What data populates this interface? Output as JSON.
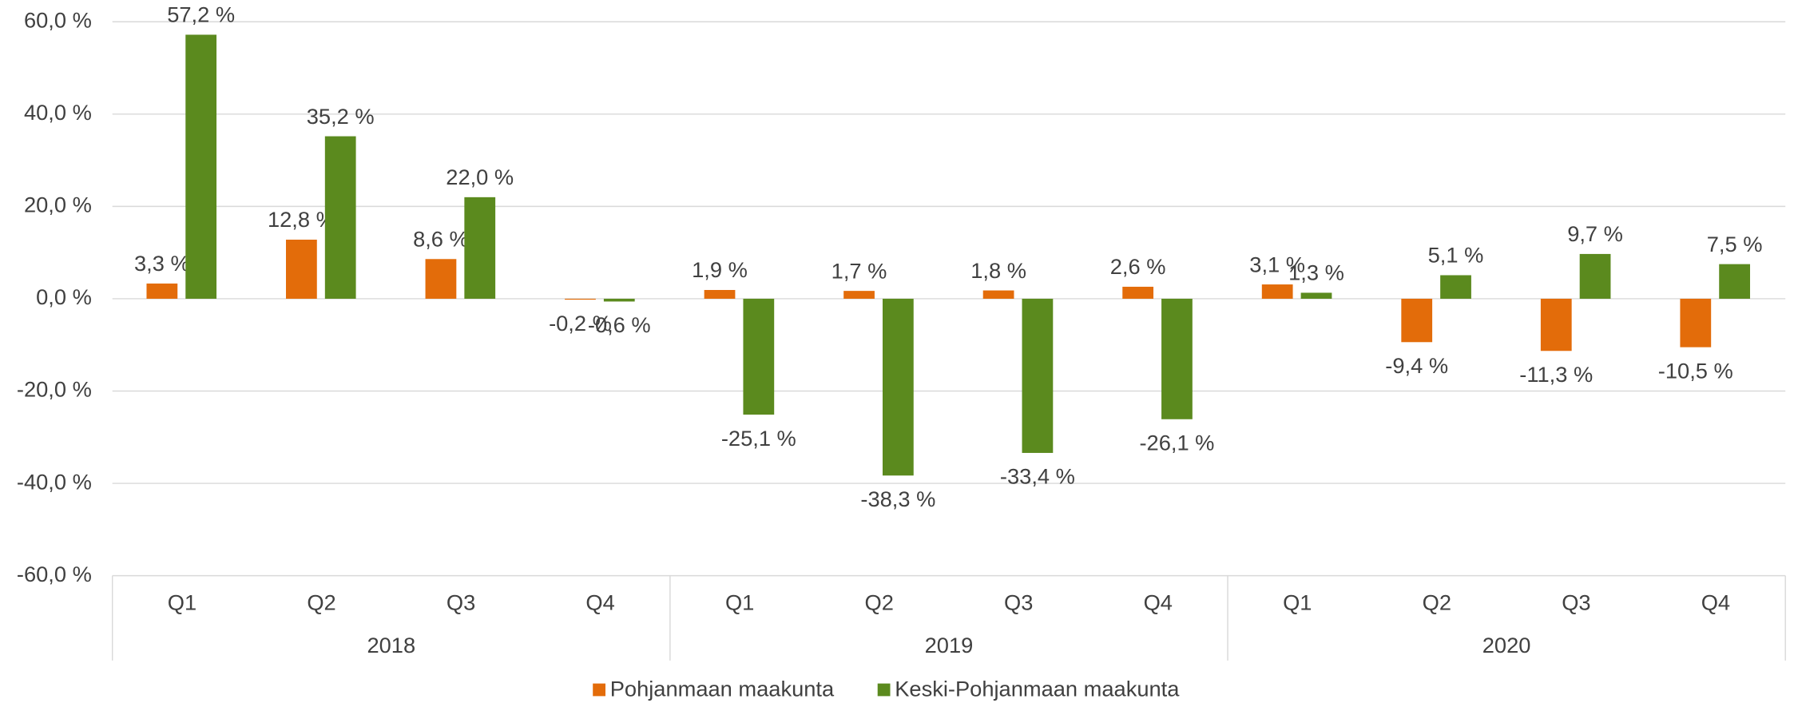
{
  "chart_data": {
    "type": "bar",
    "categories": [
      "Q1",
      "Q2",
      "Q3",
      "Q4",
      "Q1",
      "Q2",
      "Q3",
      "Q4",
      "Q1",
      "Q2",
      "Q3",
      "Q4"
    ],
    "groups": [
      "2018",
      "2019",
      "2020"
    ],
    "series": [
      {
        "name": "Pohjanmaan maakunta",
        "color": "#e36c0a",
        "values": [
          3.3,
          12.8,
          8.6,
          -0.2,
          1.9,
          1.7,
          1.8,
          2.6,
          3.1,
          -9.4,
          -11.3,
          -10.5
        ],
        "value_labels": [
          "3,3 %",
          "12,8 %",
          "8,6 %",
          "-0,2 %",
          "1,9 %",
          "1,7 %",
          "1,8 %",
          "2,6 %",
          "3,1 %",
          "-9,4 %",
          "-11,3 %",
          "-10,5 %"
        ]
      },
      {
        "name": "Keski-Pohjanmaan maakunta",
        "color": "#5b8a1e",
        "values": [
          57.2,
          35.2,
          22.0,
          -0.6,
          -25.1,
          -38.3,
          -33.4,
          -26.1,
          1.3,
          5.1,
          9.7,
          7.5
        ],
        "value_labels": [
          "57,2 %",
          "35,2 %",
          "22,0 %",
          "-0,6 %",
          "-25,1 %",
          "-38,3 %",
          "-33,4 %",
          "-26,1 %",
          "1,3 %",
          "5,1 %",
          "9,7 %",
          "7,5 %"
        ]
      }
    ],
    "ylim": [
      -60,
      60
    ],
    "yticks": [
      {
        "value": -60,
        "label": "-60,0 %"
      },
      {
        "value": -40,
        "label": "-40,0 %"
      },
      {
        "value": -20,
        "label": "-20,0 %"
      },
      {
        "value": 0,
        "label": "0,0 %"
      },
      {
        "value": 20,
        "label": "20,0 %"
      },
      {
        "value": 40,
        "label": "40,0 %"
      },
      {
        "value": 60,
        "label": "60,0 %"
      }
    ],
    "grid": true,
    "legend": "bottom"
  }
}
